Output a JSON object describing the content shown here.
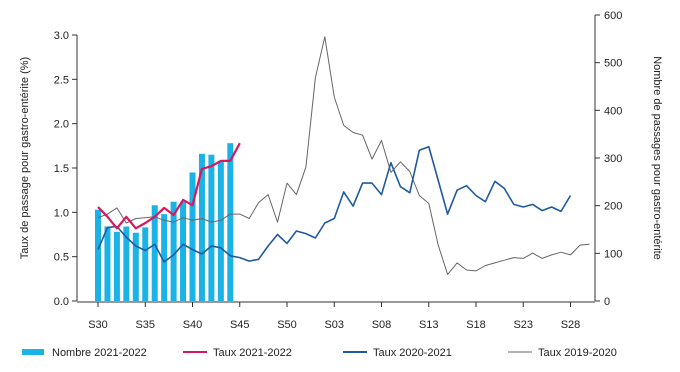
{
  "chart_data": {
    "type": "bar",
    "ylabel_left": "Taux de passage pour gastro-entérite (%)",
    "ylabel_right": "Nombre de passages pour gastro-entérite",
    "y_left_lim": [
      0,
      3.0
    ],
    "y_left_ticks": [
      "0.0",
      "0.5",
      "1.0",
      "1.5",
      "2.0",
      "2.5",
      "3.0"
    ],
    "y_right_lim": [
      0,
      600
    ],
    "y_right_ticks": [
      "0",
      "100",
      "200",
      "300",
      "400",
      "500",
      "600"
    ],
    "x_ticks": [
      "S30",
      "S35",
      "S40",
      "S45",
      "S50",
      "S03",
      "S08",
      "S13",
      "S18",
      "S23",
      "S28"
    ],
    "grid": false,
    "legend_position": "bottom",
    "series": [
      {
        "name": "Nombre 2021-2022",
        "kind": "bar",
        "axis": "left",
        "color": "#1bb3e6",
        "values": [
          1.03,
          0.84,
          0.78,
          0.84,
          0.77,
          0.83,
          1.08,
          0.98,
          1.12,
          1.12,
          1.45,
          1.66,
          1.65,
          1.58,
          1.78
        ]
      },
      {
        "name": "Taux 2021-2022",
        "kind": "line",
        "axis": "left",
        "color": "#d8175e",
        "values": [
          1.06,
          0.95,
          0.82,
          0.95,
          0.82,
          0.88,
          0.95,
          1.05,
          0.97,
          1.14,
          1.08,
          1.49,
          1.52,
          1.58,
          1.58,
          1.78
        ]
      },
      {
        "name": "Taux 2020-2021",
        "kind": "line",
        "axis": "left",
        "color": "#1f5aa0",
        "values": [
          0.58,
          0.83,
          0.84,
          0.72,
          0.62,
          0.57,
          0.64,
          0.44,
          0.52,
          0.64,
          0.58,
          0.53,
          0.62,
          0.6,
          0.51,
          0.49,
          0.45,
          0.47,
          0.62,
          0.75,
          0.65,
          0.79,
          0.76,
          0.71,
          0.88,
          0.93,
          1.23,
          1.07,
          1.33,
          1.33,
          1.2,
          1.56,
          1.29,
          1.22,
          1.7,
          1.74,
          1.36,
          0.98,
          1.25,
          1.3,
          1.19,
          1.12,
          1.35,
          1.27,
          1.09,
          1.06,
          1.09,
          1.02,
          1.06,
          1.01,
          1.19
        ]
      },
      {
        "name": "Taux 2019-2020",
        "kind": "line",
        "axis": "left",
        "color": "#666666",
        "values": [
          0.94,
          0.98,
          1.05,
          0.88,
          0.93,
          0.94,
          0.95,
          0.91,
          0.89,
          0.94,
          0.91,
          0.93,
          0.89,
          0.91,
          0.98,
          0.98,
          0.93,
          1.11,
          1.2,
          0.89,
          1.33,
          1.2,
          1.51,
          2.52,
          2.98,
          2.3,
          1.98,
          1.9,
          1.87,
          1.6,
          1.81,
          1.45,
          1.57,
          1.46,
          1.19,
          1.1,
          0.63,
          0.3,
          0.43,
          0.35,
          0.34,
          0.4,
          0.43,
          0.46,
          0.49,
          0.48,
          0.54,
          0.48,
          0.52,
          0.55,
          0.52,
          0.63,
          0.64
        ]
      }
    ]
  },
  "legend": {
    "items": [
      {
        "label": "Nombre 2021-2022",
        "color": "#1bb3e6",
        "kind": "bar"
      },
      {
        "label": "Taux 2021-2022",
        "color": "#d8175e",
        "kind": "line"
      },
      {
        "label": "Taux 2020-2021",
        "color": "#1f5aa0",
        "kind": "line"
      },
      {
        "label": "Taux 2019-2020",
        "color": "#666666",
        "kind": "line"
      }
    ]
  }
}
